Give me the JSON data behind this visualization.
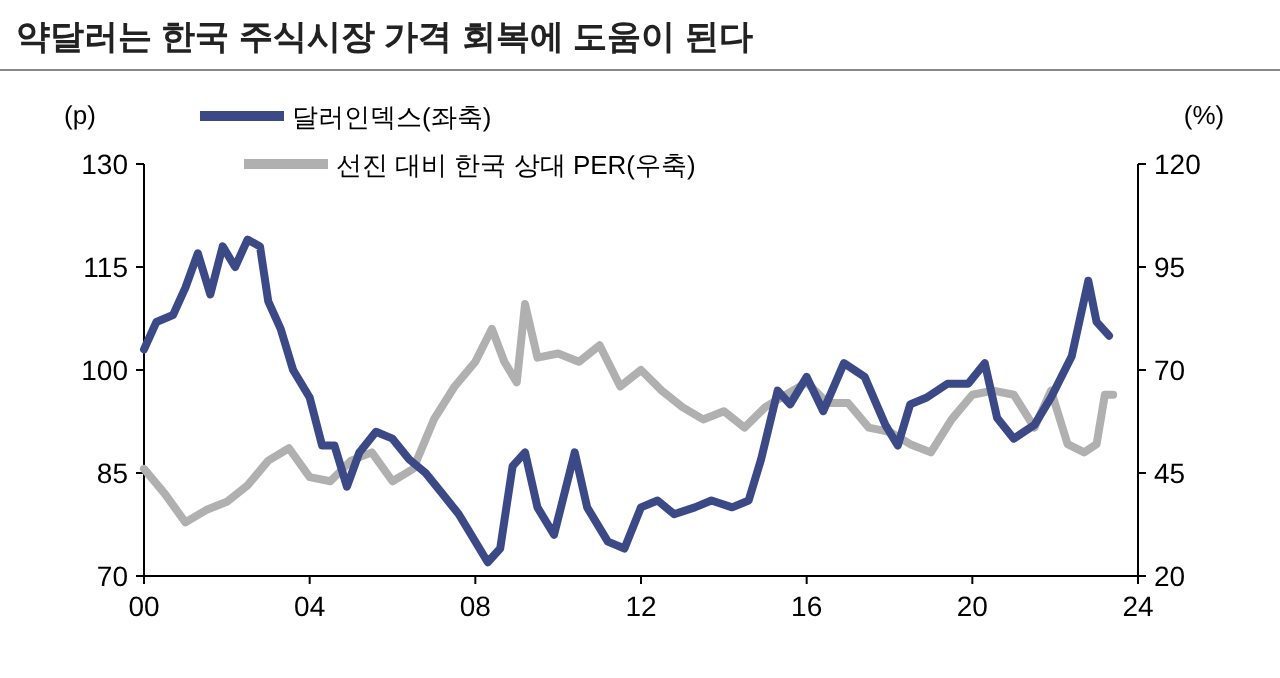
{
  "chart_data": {
    "type": "line",
    "title": "약달러는 한국 주식시장 가격 회복에 도움이 된다",
    "ylabel": "(p)",
    "y2label": "(%)",
    "xlim": [
      2000,
      2024
    ],
    "xticks": [
      {
        "value": 2000,
        "label": "00"
      },
      {
        "value": 2004,
        "label": "04"
      },
      {
        "value": 2008,
        "label": "08"
      },
      {
        "value": 2012,
        "label": "12"
      },
      {
        "value": 2016,
        "label": "16"
      },
      {
        "value": 2020,
        "label": "20"
      },
      {
        "value": 2024,
        "label": "24"
      }
    ],
    "ylim": [
      70,
      130
    ],
    "yticks": [
      70,
      85,
      100,
      115,
      130
    ],
    "y2lim": [
      20,
      120
    ],
    "y2ticks": [
      20,
      45,
      70,
      95,
      120
    ],
    "legend": "top",
    "grid": false,
    "series": [
      {
        "name": "달러인덱스(좌축)",
        "color": "#3b4a86",
        "x": [
          2000.0,
          2000.3,
          2000.7,
          2001.0,
          2001.3,
          2001.6,
          2001.9,
          2002.2,
          2002.5,
          2002.8,
          2003.0,
          2003.3,
          2003.6,
          2004.0,
          2004.3,
          2004.6,
          2004.9,
          2005.2,
          2005.6,
          2006.0,
          2006.4,
          2006.8,
          2007.2,
          2007.6,
          2007.9,
          2008.3,
          2008.6,
          2008.9,
          2009.2,
          2009.5,
          2009.9,
          2010.4,
          2010.7,
          2011.2,
          2011.6,
          2012.0,
          2012.4,
          2012.8,
          2013.3,
          2013.7,
          2014.2,
          2014.6,
          2014.9,
          2015.3,
          2015.6,
          2016.0,
          2016.4,
          2016.9,
          2017.4,
          2017.9,
          2018.2,
          2018.5,
          2018.9,
          2019.4,
          2019.9,
          2020.3,
          2020.6,
          2021.0,
          2021.5,
          2021.9,
          2022.4,
          2022.8,
          2023.0,
          2023.3
        ],
        "values": [
          103,
          107,
          108,
          112,
          117,
          111,
          118,
          115,
          119,
          118,
          110,
          106,
          100,
          96,
          89,
          89,
          83,
          88,
          91,
          90,
          87,
          85,
          82,
          79,
          76,
          72,
          74,
          86,
          88,
          80,
          76,
          88,
          80,
          75,
          74,
          80,
          81,
          79,
          80,
          81,
          80,
          81,
          87,
          97,
          95,
          99,
          94,
          101,
          99,
          92,
          89,
          95,
          96,
          98,
          98,
          101,
          93,
          90,
          92,
          96,
          102,
          113,
          107,
          105
        ]
      },
      {
        "name": "선진 대비 한국 상대 PER(우축)",
        "color": "#b0b0b0",
        "axis": "y2",
        "x": [
          2000.0,
          2000.5,
          2001.0,
          2001.5,
          2002.0,
          2002.5,
          2003.0,
          2003.5,
          2004.0,
          2004.5,
          2005.0,
          2005.5,
          2006.0,
          2006.5,
          2007.0,
          2007.5,
          2008.0,
          2008.4,
          2008.7,
          2009.0,
          2009.2,
          2009.5,
          2010.0,
          2010.5,
          2011.0,
          2011.5,
          2012.0,
          2012.5,
          2013.0,
          2013.5,
          2014.0,
          2014.5,
          2015.0,
          2015.5,
          2016.0,
          2016.5,
          2017.0,
          2017.5,
          2018.0,
          2018.5,
          2019.0,
          2019.5,
          2020.0,
          2020.5,
          2021.0,
          2021.5,
          2021.9,
          2022.3,
          2022.7,
          2023.0,
          2023.2,
          2023.4
        ],
        "values": [
          46,
          40,
          33,
          36,
          38,
          42,
          48,
          51,
          44,
          43,
          48,
          50,
          43,
          46,
          58,
          66,
          72,
          80,
          72,
          67,
          86,
          73,
          74,
          72,
          76,
          66,
          70,
          65,
          61,
          58,
          60,
          56,
          61,
          64,
          67,
          62,
          62,
          56,
          55,
          52,
          50,
          58,
          64,
          65,
          64,
          56,
          65,
          52,
          50,
          52,
          64,
          64
        ]
      }
    ]
  }
}
